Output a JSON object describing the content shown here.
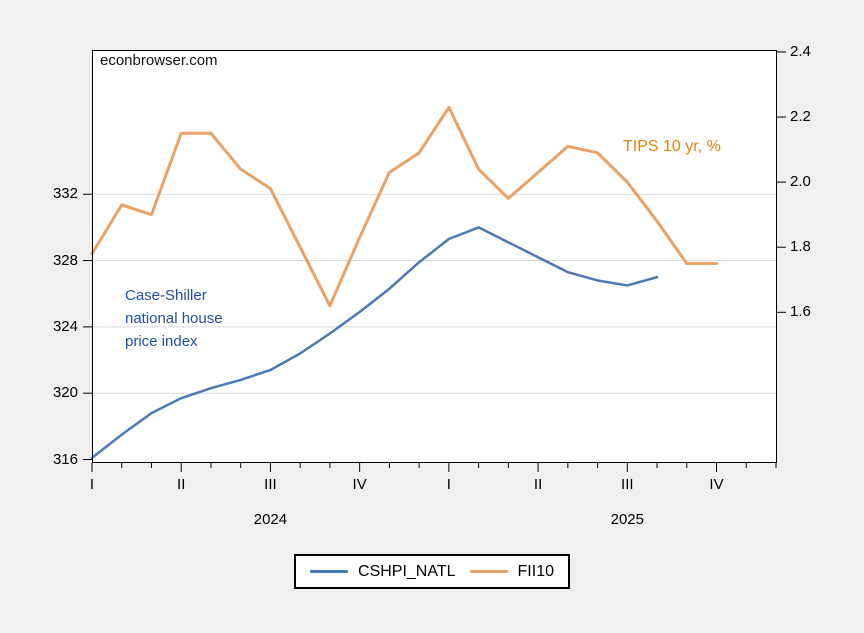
{
  "watermark": "econbrowser.com",
  "annotations": {
    "left_series_label": "Case-Shiller\nnational house\nprice index",
    "right_series_label": "TIPS 10 yr, %"
  },
  "legend": {
    "items": [
      {
        "label": "CSHPI_NATL",
        "color": "#4a7ab5"
      },
      {
        "label": "FII10",
        "color": "#e8a268"
      }
    ]
  },
  "colors": {
    "background": "#f1f0ee",
    "plot_background": "#ffffff",
    "frame": "#000000",
    "grid": "#d9d9d9",
    "blue_line": "#4a7ab5",
    "orange_line": "#e8a268",
    "annotation_blue": "#1f4e9e",
    "annotation_orange": "#e0820f"
  },
  "chart_data": {
    "type": "line",
    "title": "",
    "x_unit": "month",
    "categories": [
      "Jan 2024",
      "Feb 2024",
      "Mar 2024",
      "Apr 2024",
      "May 2024",
      "Jun 2024",
      "Jul 2024",
      "Aug 2024",
      "Sep 2024",
      "Oct 2024",
      "Nov 2024",
      "Dec 2024",
      "Jan 2025",
      "Feb 2025",
      "Mar 2025",
      "Apr 2025",
      "May 2025",
      "Jun 2025",
      "Jul 2025",
      "Aug 2025",
      "Sep 2025",
      "Oct 2025",
      "Nov 2025",
      "Dec 2025"
    ],
    "x_quarter_labels": [
      "I",
      "II",
      "III",
      "IV",
      "I",
      "II",
      "III",
      "IV"
    ],
    "x_year_labels": [
      "2024",
      "2025"
    ],
    "left_axis": {
      "ticks": [
        316,
        320,
        324,
        328,
        332
      ],
      "range": [
        315.85,
        340.7
      ],
      "gridline_ticks": [
        320,
        324,
        328,
        332
      ]
    },
    "right_axis": {
      "ticks": [
        "1.6",
        "1.8",
        "2.0",
        "2.2",
        "2.4"
      ],
      "tick_values": [
        1.6,
        1.8,
        2.0,
        2.2,
        2.4
      ],
      "range": [
        1.14,
        2.406
      ]
    },
    "grid": "horizontal only",
    "legend_position": "bottom center",
    "series": [
      {
        "name": "CSHPI_NATL",
        "axis": "left",
        "color": "#4a7ab5",
        "values": [
          316.1,
          317.5,
          318.8,
          319.7,
          320.3,
          320.8,
          321.4,
          322.4,
          323.6,
          324.9,
          326.3,
          327.9,
          329.3,
          330.0,
          329.1,
          328.2,
          327.3,
          326.8,
          326.5,
          327.0
        ]
      },
      {
        "name": "FII10",
        "axis": "right",
        "color": "#e8a268",
        "values": [
          1.78,
          1.93,
          1.9,
          2.15,
          2.15,
          2.04,
          1.98,
          1.8,
          1.62,
          1.83,
          2.03,
          2.09,
          2.23,
          2.04,
          1.95,
          2.03,
          2.11,
          2.09,
          2.0,
          1.88,
          1.75,
          1.75
        ]
      }
    ]
  }
}
